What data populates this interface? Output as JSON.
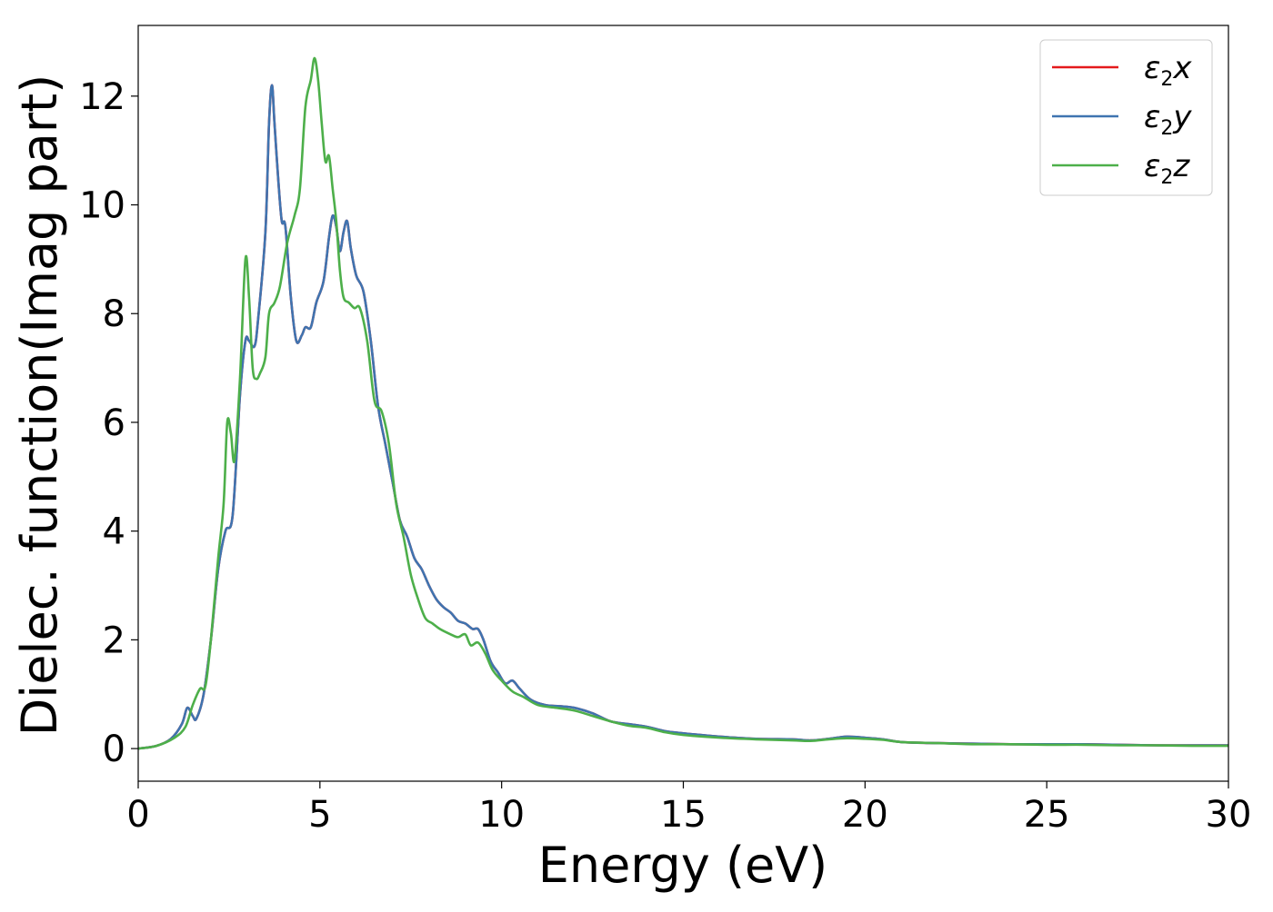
{
  "chart_data": {
    "type": "line",
    "xlabel": "Energy (eV)",
    "ylabel": "Dielec. function(Imag part)",
    "xlim": [
      0,
      30
    ],
    "ylim": [
      -0.6,
      13.3
    ],
    "xticks": [
      0,
      5,
      10,
      15,
      20,
      25,
      30
    ],
    "yticks": [
      0,
      2,
      4,
      6,
      8,
      10,
      12
    ],
    "grid": false,
    "legend_position": "top-right",
    "colors": {
      "x": "#e41a1c",
      "y": "#3f74b0",
      "z": "#4daf4a"
    },
    "legend": [
      {
        "key": "x",
        "symbol": "ε",
        "sub": "2",
        "comp": "x"
      },
      {
        "key": "y",
        "symbol": "ε",
        "sub": "2",
        "comp": "y"
      },
      {
        "key": "z",
        "symbol": "ε",
        "sub": "2",
        "comp": "z"
      }
    ],
    "series": [
      {
        "name": "ε2x",
        "key": "x",
        "points": [
          [
            0,
            0
          ],
          [
            0.5,
            0.05
          ],
          [
            0.9,
            0.18
          ],
          [
            1.2,
            0.45
          ],
          [
            1.35,
            0.75
          ],
          [
            1.5,
            0.6
          ],
          [
            1.6,
            0.55
          ],
          [
            1.8,
            1.0
          ],
          [
            2.0,
            2.0
          ],
          [
            2.2,
            3.3
          ],
          [
            2.4,
            4.0
          ],
          [
            2.6,
            4.3
          ],
          [
            2.8,
            6.5
          ],
          [
            2.95,
            7.5
          ],
          [
            3.05,
            7.5
          ],
          [
            3.2,
            7.4
          ],
          [
            3.3,
            7.9
          ],
          [
            3.5,
            9.5
          ],
          [
            3.6,
            11.5
          ],
          [
            3.68,
            12.2
          ],
          [
            3.75,
            11.5
          ],
          [
            3.85,
            10.5
          ],
          [
            3.95,
            9.7
          ],
          [
            4.05,
            9.6
          ],
          [
            4.2,
            8.3
          ],
          [
            4.35,
            7.5
          ],
          [
            4.5,
            7.6
          ],
          [
            4.6,
            7.75
          ],
          [
            4.75,
            7.75
          ],
          [
            4.9,
            8.2
          ],
          [
            5.1,
            8.6
          ],
          [
            5.25,
            9.4
          ],
          [
            5.35,
            9.8
          ],
          [
            5.45,
            9.6
          ],
          [
            5.55,
            9.15
          ],
          [
            5.65,
            9.5
          ],
          [
            5.75,
            9.7
          ],
          [
            5.85,
            9.2
          ],
          [
            6.0,
            8.7
          ],
          [
            6.2,
            8.4
          ],
          [
            6.4,
            7.5
          ],
          [
            6.6,
            6.3
          ],
          [
            6.8,
            5.6
          ],
          [
            7.0,
            4.9
          ],
          [
            7.2,
            4.2
          ],
          [
            7.4,
            3.9
          ],
          [
            7.6,
            3.5
          ],
          [
            7.8,
            3.3
          ],
          [
            8.0,
            3.0
          ],
          [
            8.2,
            2.75
          ],
          [
            8.4,
            2.6
          ],
          [
            8.6,
            2.5
          ],
          [
            8.8,
            2.35
          ],
          [
            9.0,
            2.3
          ],
          [
            9.2,
            2.2
          ],
          [
            9.35,
            2.2
          ],
          [
            9.5,
            2.0
          ],
          [
            9.7,
            1.6
          ],
          [
            9.9,
            1.4
          ],
          [
            10.1,
            1.2
          ],
          [
            10.3,
            1.25
          ],
          [
            10.5,
            1.1
          ],
          [
            10.8,
            0.9
          ],
          [
            11.2,
            0.8
          ],
          [
            11.6,
            0.78
          ],
          [
            12.0,
            0.75
          ],
          [
            12.5,
            0.65
          ],
          [
            13.0,
            0.5
          ],
          [
            13.5,
            0.45
          ],
          [
            14.0,
            0.4
          ],
          [
            14.5,
            0.32
          ],
          [
            15.0,
            0.28
          ],
          [
            16.0,
            0.22
          ],
          [
            17.0,
            0.18
          ],
          [
            18.0,
            0.17
          ],
          [
            18.5,
            0.15
          ],
          [
            19.0,
            0.18
          ],
          [
            19.5,
            0.22
          ],
          [
            20.0,
            0.2
          ],
          [
            20.5,
            0.17
          ],
          [
            21.0,
            0.12
          ],
          [
            22.0,
            0.1
          ],
          [
            23.0,
            0.09
          ],
          [
            24.0,
            0.08
          ],
          [
            25.0,
            0.08
          ],
          [
            26.0,
            0.08
          ],
          [
            27.0,
            0.07
          ],
          [
            28.0,
            0.06
          ],
          [
            29.0,
            0.06
          ],
          [
            30.0,
            0.06
          ]
        ]
      },
      {
        "name": "ε2y",
        "key": "y",
        "points": [
          [
            0,
            0
          ],
          [
            0.5,
            0.05
          ],
          [
            0.9,
            0.18
          ],
          [
            1.2,
            0.45
          ],
          [
            1.35,
            0.75
          ],
          [
            1.5,
            0.6
          ],
          [
            1.6,
            0.55
          ],
          [
            1.8,
            1.0
          ],
          [
            2.0,
            2.0
          ],
          [
            2.2,
            3.3
          ],
          [
            2.4,
            4.0
          ],
          [
            2.6,
            4.3
          ],
          [
            2.8,
            6.5
          ],
          [
            2.95,
            7.5
          ],
          [
            3.05,
            7.5
          ],
          [
            3.2,
            7.4
          ],
          [
            3.3,
            7.9
          ],
          [
            3.5,
            9.5
          ],
          [
            3.6,
            11.5
          ],
          [
            3.68,
            12.2
          ],
          [
            3.75,
            11.5
          ],
          [
            3.85,
            10.5
          ],
          [
            3.95,
            9.7
          ],
          [
            4.05,
            9.6
          ],
          [
            4.2,
            8.3
          ],
          [
            4.35,
            7.5
          ],
          [
            4.5,
            7.6
          ],
          [
            4.6,
            7.75
          ],
          [
            4.75,
            7.75
          ],
          [
            4.9,
            8.2
          ],
          [
            5.1,
            8.6
          ],
          [
            5.25,
            9.4
          ],
          [
            5.35,
            9.8
          ],
          [
            5.45,
            9.6
          ],
          [
            5.55,
            9.15
          ],
          [
            5.65,
            9.5
          ],
          [
            5.75,
            9.7
          ],
          [
            5.85,
            9.2
          ],
          [
            6.0,
            8.7
          ],
          [
            6.2,
            8.4
          ],
          [
            6.4,
            7.5
          ],
          [
            6.6,
            6.3
          ],
          [
            6.8,
            5.6
          ],
          [
            7.0,
            4.9
          ],
          [
            7.2,
            4.2
          ],
          [
            7.4,
            3.9
          ],
          [
            7.6,
            3.5
          ],
          [
            7.8,
            3.3
          ],
          [
            8.0,
            3.0
          ],
          [
            8.2,
            2.75
          ],
          [
            8.4,
            2.6
          ],
          [
            8.6,
            2.5
          ],
          [
            8.8,
            2.35
          ],
          [
            9.0,
            2.3
          ],
          [
            9.2,
            2.2
          ],
          [
            9.35,
            2.2
          ],
          [
            9.5,
            2.0
          ],
          [
            9.7,
            1.6
          ],
          [
            9.9,
            1.4
          ],
          [
            10.1,
            1.2
          ],
          [
            10.3,
            1.25
          ],
          [
            10.5,
            1.1
          ],
          [
            10.8,
            0.9
          ],
          [
            11.2,
            0.8
          ],
          [
            11.6,
            0.78
          ],
          [
            12.0,
            0.75
          ],
          [
            12.5,
            0.65
          ],
          [
            13.0,
            0.5
          ],
          [
            13.5,
            0.45
          ],
          [
            14.0,
            0.4
          ],
          [
            14.5,
            0.32
          ],
          [
            15.0,
            0.28
          ],
          [
            16.0,
            0.22
          ],
          [
            17.0,
            0.18
          ],
          [
            18.0,
            0.17
          ],
          [
            18.5,
            0.15
          ],
          [
            19.0,
            0.18
          ],
          [
            19.5,
            0.22
          ],
          [
            20.0,
            0.2
          ],
          [
            20.5,
            0.17
          ],
          [
            21.0,
            0.12
          ],
          [
            22.0,
            0.1
          ],
          [
            23.0,
            0.09
          ],
          [
            24.0,
            0.08
          ],
          [
            25.0,
            0.08
          ],
          [
            26.0,
            0.08
          ],
          [
            27.0,
            0.07
          ],
          [
            28.0,
            0.06
          ],
          [
            29.0,
            0.06
          ],
          [
            30.0,
            0.06
          ]
        ]
      },
      {
        "name": "ε2z",
        "key": "z",
        "points": [
          [
            0,
            0
          ],
          [
            0.5,
            0.05
          ],
          [
            1.0,
            0.2
          ],
          [
            1.3,
            0.4
          ],
          [
            1.5,
            0.8
          ],
          [
            1.7,
            1.1
          ],
          [
            1.85,
            1.15
          ],
          [
            2.0,
            2.0
          ],
          [
            2.2,
            3.5
          ],
          [
            2.35,
            4.5
          ],
          [
            2.45,
            6.0
          ],
          [
            2.55,
            5.8
          ],
          [
            2.65,
            5.3
          ],
          [
            2.8,
            6.8
          ],
          [
            2.95,
            9.0
          ],
          [
            3.05,
            8.3
          ],
          [
            3.15,
            7.0
          ],
          [
            3.25,
            6.8
          ],
          [
            3.35,
            6.9
          ],
          [
            3.5,
            7.2
          ],
          [
            3.6,
            8.0
          ],
          [
            3.75,
            8.2
          ],
          [
            3.9,
            8.5
          ],
          [
            4.1,
            9.3
          ],
          [
            4.3,
            9.8
          ],
          [
            4.45,
            10.3
          ],
          [
            4.6,
            11.8
          ],
          [
            4.75,
            12.3
          ],
          [
            4.85,
            12.7
          ],
          [
            4.95,
            12.3
          ],
          [
            5.05,
            11.5
          ],
          [
            5.15,
            10.8
          ],
          [
            5.25,
            10.9
          ],
          [
            5.35,
            10.3
          ],
          [
            5.45,
            9.7
          ],
          [
            5.55,
            8.8
          ],
          [
            5.65,
            8.3
          ],
          [
            5.8,
            8.2
          ],
          [
            5.95,
            8.1
          ],
          [
            6.1,
            8.1
          ],
          [
            6.3,
            7.5
          ],
          [
            6.5,
            6.4
          ],
          [
            6.7,
            6.2
          ],
          [
            6.9,
            5.6
          ],
          [
            7.1,
            4.5
          ],
          [
            7.3,
            3.9
          ],
          [
            7.5,
            3.2
          ],
          [
            7.7,
            2.75
          ],
          [
            7.9,
            2.4
          ],
          [
            8.1,
            2.3
          ],
          [
            8.3,
            2.2
          ],
          [
            8.6,
            2.1
          ],
          [
            8.8,
            2.05
          ],
          [
            9.0,
            2.1
          ],
          [
            9.15,
            1.9
          ],
          [
            9.35,
            1.95
          ],
          [
            9.55,
            1.75
          ],
          [
            9.75,
            1.45
          ],
          [
            10.0,
            1.25
          ],
          [
            10.3,
            1.05
          ],
          [
            10.6,
            0.95
          ],
          [
            11.0,
            0.8
          ],
          [
            11.5,
            0.75
          ],
          [
            12.0,
            0.7
          ],
          [
            12.5,
            0.6
          ],
          [
            13.0,
            0.5
          ],
          [
            13.5,
            0.42
          ],
          [
            14.0,
            0.38
          ],
          [
            14.5,
            0.3
          ],
          [
            15.0,
            0.25
          ],
          [
            16.0,
            0.2
          ],
          [
            17.0,
            0.17
          ],
          [
            18.0,
            0.15
          ],
          [
            18.5,
            0.14
          ],
          [
            19.0,
            0.17
          ],
          [
            19.5,
            0.19
          ],
          [
            20.0,
            0.18
          ],
          [
            20.5,
            0.16
          ],
          [
            21.0,
            0.12
          ],
          [
            22.0,
            0.1
          ],
          [
            23.0,
            0.08
          ],
          [
            24.0,
            0.08
          ],
          [
            25.0,
            0.07
          ],
          [
            26.0,
            0.07
          ],
          [
            27.0,
            0.06
          ],
          [
            28.0,
            0.06
          ],
          [
            29.0,
            0.05
          ],
          [
            30.0,
            0.05
          ]
        ]
      }
    ]
  }
}
